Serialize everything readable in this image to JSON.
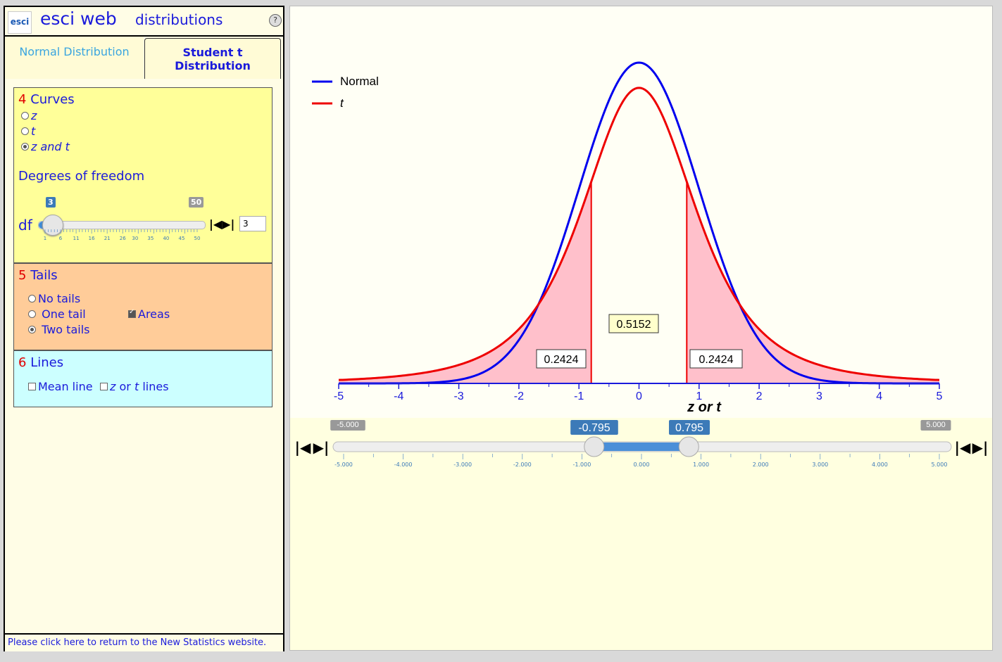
{
  "app": {
    "logo": "esci",
    "title": "esci web",
    "subtitle": "distributions",
    "help": "?"
  },
  "tabs": [
    {
      "label": "Normal Distribution",
      "active": false
    },
    {
      "label": "Student t Distribution",
      "active": true
    }
  ],
  "curves": {
    "num": "4",
    "title": "Curves",
    "options": [
      {
        "label": "z",
        "selected": false
      },
      {
        "label": "t",
        "selected": false
      },
      {
        "label": "z and t",
        "selected": true
      }
    ],
    "dof_title": "Degrees of freedom",
    "df_label": "df",
    "df_value": "3",
    "df_min_badge": "3",
    "df_max_badge": "50",
    "df_ticks": [
      "1",
      "6",
      "11",
      "16",
      "21",
      "26",
      "30",
      "35",
      "40",
      "45",
      "50"
    ]
  },
  "tails": {
    "num": "5",
    "title": "Tails",
    "options": [
      {
        "label": "No tails",
        "selected": false
      },
      {
        "label": "One tail",
        "selected": false
      },
      {
        "label": "Two tails",
        "selected": true
      }
    ],
    "areas_label": "Areas",
    "areas_checked": true
  },
  "lines": {
    "num": "6",
    "title": "Lines",
    "mean_label": "Mean line",
    "zt_label_a": "z",
    "zt_label_b": "or",
    "zt_label_c": "t",
    "zt_label_d": "lines"
  },
  "footer": {
    "link": "Please click here to return to the New Statistics website."
  },
  "chart_data": {
    "type": "line",
    "legend": [
      {
        "name": "Normal",
        "color": "#0000ee"
      },
      {
        "name": "t",
        "color": "#ee0000"
      }
    ],
    "legend_position": "top-left",
    "xlabel": "z or t",
    "xlim": [
      -5,
      5
    ],
    "x_ticks": [
      "-5",
      "-4",
      "-3",
      "-2",
      "-1",
      "0",
      "1",
      "2",
      "3",
      "4",
      "5"
    ],
    "series": [
      {
        "name": "Normal",
        "distribution": "normal",
        "mean": 0,
        "sd": 1,
        "peak_density": 0.3989
      },
      {
        "name": "t",
        "distribution": "t",
        "df": 3,
        "peak_density": 0.3676
      }
    ],
    "critical_values": [
      -0.795,
      0.795
    ],
    "areas": {
      "left": "0.2424",
      "middle": "0.5152",
      "right": "0.2424"
    },
    "shaded_color": "#ffc0cb"
  },
  "zslider": {
    "min_badge": "-5.000",
    "max_badge": "5.000",
    "low_badge": "-0.795",
    "high_badge": "0.795",
    "low": -0.795,
    "high": 0.795,
    "ticks": [
      "-5.000",
      "-4.000",
      "-3.000",
      "-2.000",
      "-1.000",
      "0.000",
      "1.000",
      "2.000",
      "3.000",
      "4.000",
      "5.000"
    ]
  }
}
